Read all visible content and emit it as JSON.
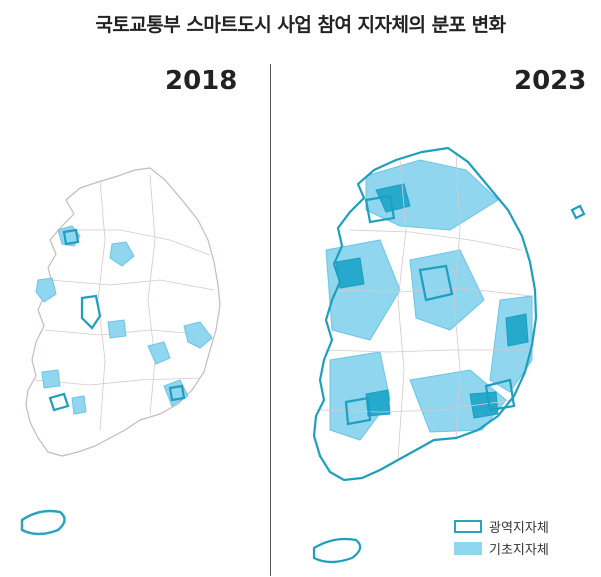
{
  "title": "국토교통부 스마트도시 사업 참여 지자체의 분포 변화",
  "maps": [
    {
      "year": "2018"
    },
    {
      "year": "2023"
    }
  ],
  "legend": {
    "metro": "광역지자체",
    "basic": "기초지자체"
  },
  "colors": {
    "boundary": "#c9b9bb",
    "metro_outline": "#1e9fbf",
    "basic_fill": "#8fd6ee",
    "dense_fill": "#25a9cc"
  }
}
